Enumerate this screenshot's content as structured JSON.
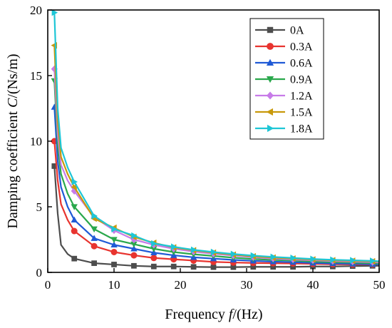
{
  "chart_data": {
    "type": "line",
    "xlabel_prefix": "Frequency ",
    "xlabel_var": "f",
    "xlabel_suffix": "/(Hz)",
    "ylabel_prefix": "Damping coefficient ",
    "ylabel_var": "C",
    "ylabel_suffix": "/(Ns/m)",
    "xlim": [
      0,
      50
    ],
    "ylim": [
      0,
      20
    ],
    "xticks": [
      0,
      10,
      20,
      30,
      40,
      50
    ],
    "yticks": [
      0,
      5,
      10,
      15,
      20
    ],
    "legend_position": "top-right",
    "x": [
      1,
      1.5,
      2,
      3,
      4,
      7,
      10,
      13,
      16,
      19,
      22,
      25,
      28,
      31,
      34,
      37,
      40,
      43,
      46,
      49,
      50
    ],
    "marker_x": [
      1,
      4,
      7,
      10,
      13,
      16,
      19,
      22,
      25,
      28,
      31,
      34,
      37,
      40,
      43,
      46,
      49
    ],
    "series": [
      {
        "name": "0A",
        "color": "#4d4d4d",
        "marker": "square",
        "values": [
          8.1,
          4.5,
          2.1,
          1.4,
          1.05,
          0.7,
          0.6,
          0.5,
          0.45,
          0.45,
          0.42,
          0.4,
          0.4,
          0.42,
          0.42,
          0.42,
          0.45,
          0.45,
          0.48,
          0.5,
          0.5
        ]
      },
      {
        "name": "0.3A",
        "color": "#e8342f",
        "marker": "circle",
        "values": [
          10.0,
          7.0,
          5.2,
          4.0,
          3.15,
          2.0,
          1.55,
          1.3,
          1.1,
          1.0,
          0.9,
          0.8,
          0.75,
          0.72,
          0.7,
          0.68,
          0.65,
          0.62,
          0.6,
          0.6,
          0.6
        ]
      },
      {
        "name": "0.6A",
        "color": "#1f5ad6",
        "marker": "triangle-up",
        "values": [
          12.6,
          8.5,
          6.5,
          5.0,
          4.0,
          2.6,
          2.1,
          1.8,
          1.5,
          1.3,
          1.15,
          1.05,
          0.95,
          0.88,
          0.82,
          0.78,
          0.72,
          0.68,
          0.65,
          0.62,
          0.6
        ]
      },
      {
        "name": "0.9A",
        "color": "#2aa84c",
        "marker": "triangle-down",
        "values": [
          14.6,
          9.7,
          7.5,
          6.0,
          5.0,
          3.3,
          2.5,
          2.15,
          1.8,
          1.55,
          1.38,
          1.25,
          1.12,
          1.02,
          0.95,
          0.9,
          0.82,
          0.78,
          0.74,
          0.7,
          0.68
        ]
      },
      {
        "name": "1.2A",
        "color": "#c77be8",
        "marker": "diamond",
        "values": [
          15.5,
          10.5,
          8.2,
          7.0,
          6.2,
          4.2,
          3.2,
          2.5,
          2.1,
          1.8,
          1.58,
          1.42,
          1.28,
          1.15,
          1.05,
          0.98,
          0.92,
          0.86,
          0.82,
          0.78,
          0.75
        ]
      },
      {
        "name": "1.5A",
        "color": "#c8990b",
        "marker": "triangle-left",
        "values": [
          17.3,
          11.5,
          8.8,
          7.5,
          6.5,
          4.1,
          3.4,
          2.7,
          2.25,
          1.9,
          1.68,
          1.5,
          1.35,
          1.22,
          1.12,
          1.05,
          0.98,
          0.92,
          0.88,
          0.84,
          0.82
        ]
      },
      {
        "name": "1.8A",
        "color": "#1ec6d6",
        "marker": "triangle-right",
        "values": [
          19.8,
          12.5,
          9.5,
          8.0,
          6.9,
          4.3,
          3.3,
          2.8,
          2.2,
          1.95,
          1.72,
          1.55,
          1.4,
          1.28,
          1.18,
          1.1,
          1.02,
          0.96,
          0.92,
          0.88,
          0.85
        ]
      }
    ]
  }
}
